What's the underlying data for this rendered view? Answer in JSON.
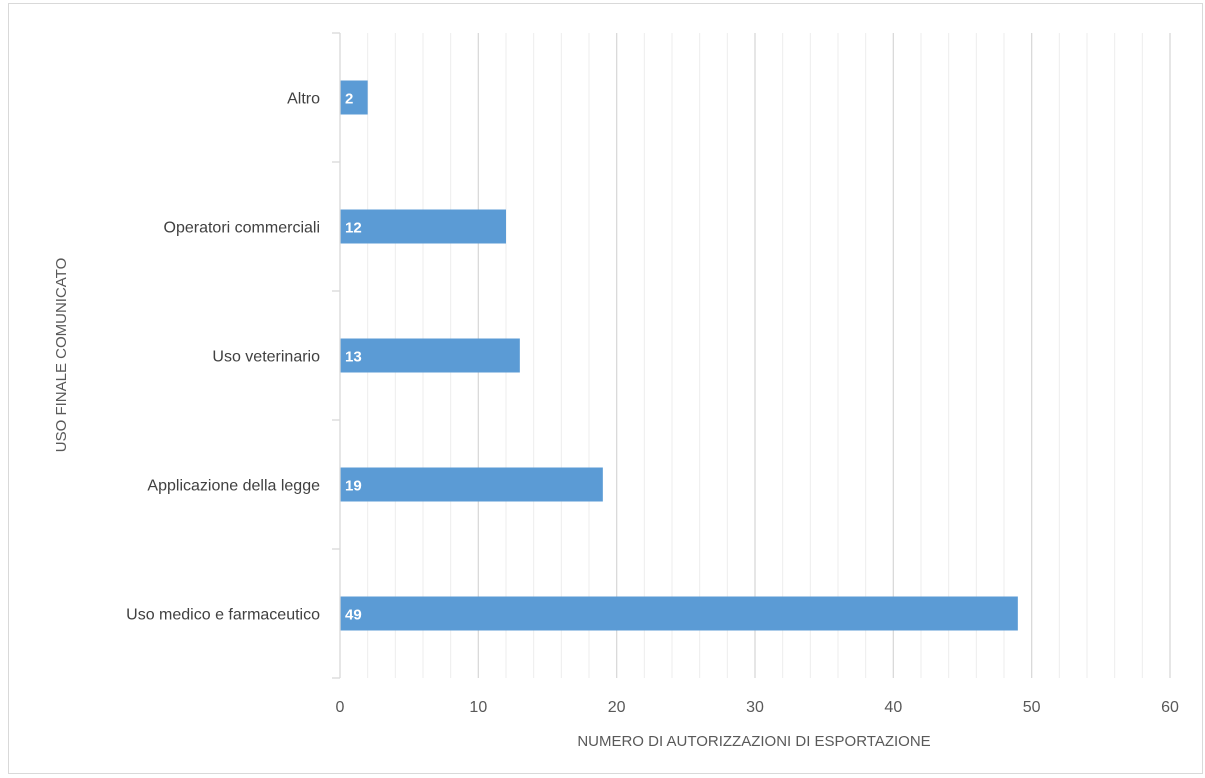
{
  "chart_data": {
    "type": "bar",
    "orientation": "horizontal",
    "categories": [
      "Uso medico e farmaceutico",
      "Applicazione della legge",
      "Uso veterinario",
      "Operatori commerciali",
      "Altro"
    ],
    "values": [
      49,
      19,
      13,
      12,
      2
    ],
    "data_labels": [
      "49",
      "19",
      "13",
      "12",
      "2"
    ],
    "xlabel": "NUMERO DI AUTORIZZAZIONI DI ESPORTAZIONE",
    "ylabel": "USO FINALE COMUNICATO",
    "xlim": [
      0,
      60
    ],
    "xticks": [
      "0",
      "10",
      "20",
      "30",
      "40",
      "50",
      "60"
    ],
    "grid": "vertical major and minor",
    "legend": "none",
    "colors": {
      "bar": "#5b9bd5",
      "major_grid": "#d9d9d9",
      "minor_grid": "#ededed",
      "axis": "#d9d9d9"
    }
  }
}
